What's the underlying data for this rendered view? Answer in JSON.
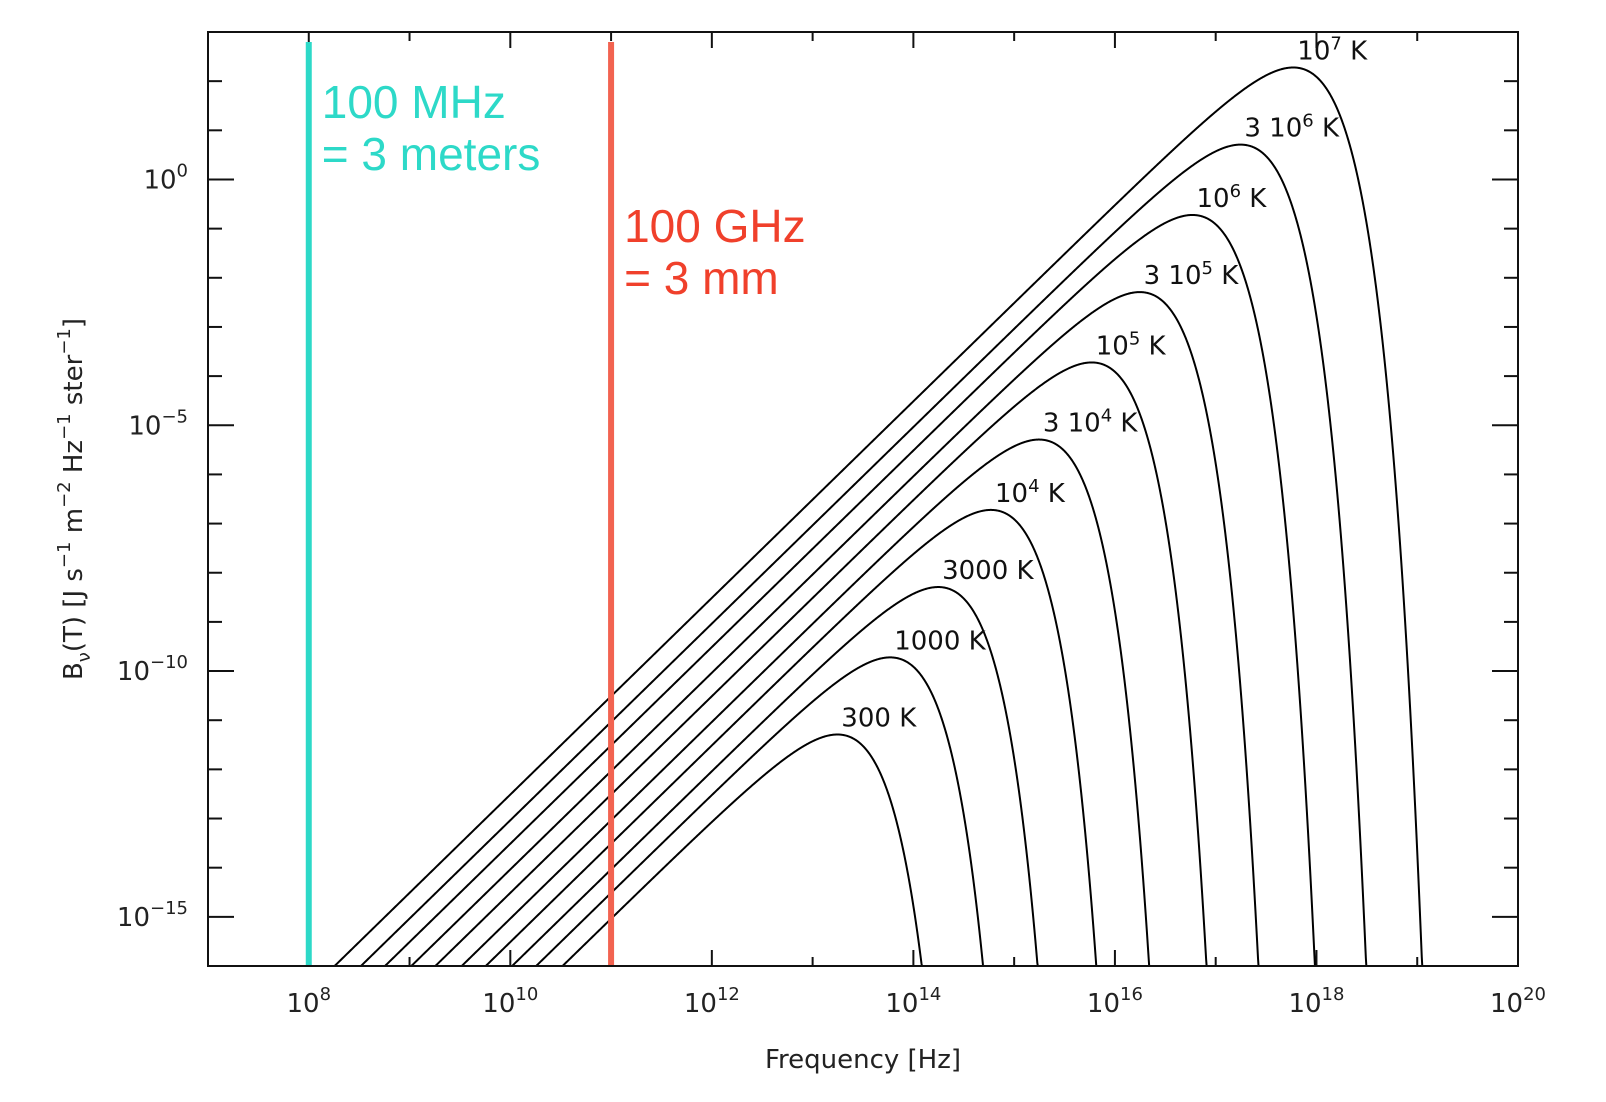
{
  "chart_data": {
    "type": "line",
    "x_scale": "log",
    "y_scale": "log",
    "xlim": [
      10000000,
      100000000000000000000
    ],
    "ylim": [
      1e-16,
      1000
    ],
    "xlabel": {
      "text": "Frequency [Hz]"
    },
    "ylabel": {
      "pre": "B",
      "sub": "ν",
      "mid": "(T)  [J s",
      "e1": "−1",
      "t2": " m",
      "e2": "−2",
      "t3": " Hz",
      "e3": "−1",
      "t4": " ster",
      "e4": "−1",
      "t5": "]"
    },
    "x_ticks": [
      {
        "value": 100000000,
        "base": "10",
        "exp": "8"
      },
      {
        "value": 10000000000,
        "base": "10",
        "exp": "10"
      },
      {
        "value": 1000000000000,
        "base": "10",
        "exp": "12"
      },
      {
        "value": 100000000000000,
        "base": "10",
        "exp": "14"
      },
      {
        "value": 10000000000000000,
        "base": "10",
        "exp": "16"
      },
      {
        "value": 1000000000000000000,
        "base": "10",
        "exp": "18"
      },
      {
        "value": 100000000000000000000,
        "base": "10",
        "exp": "20"
      }
    ],
    "y_ticks": [
      {
        "value": 1,
        "base": "10",
        "exp": "0"
      },
      {
        "value": 1e-05,
        "base": "10",
        "exp": "−5"
      },
      {
        "value": 1e-10,
        "base": "10",
        "exp": "−10"
      },
      {
        "value": 1e-15,
        "base": "10",
        "exp": "−15"
      }
    ],
    "series": [
      {
        "temperature_K": 300,
        "label": {
          "t1": "300  K"
        }
      },
      {
        "temperature_K": 1000,
        "label": {
          "t1": "1000  K"
        }
      },
      {
        "temperature_K": 3000,
        "label": {
          "t1": "3000  K"
        }
      },
      {
        "temperature_K": 10000,
        "label": {
          "t1": "10",
          "sup": "4",
          "t2": "  K"
        }
      },
      {
        "temperature_K": 30000,
        "label": {
          "t1": "3  10",
          "sup": "4",
          "t2": "  K"
        }
      },
      {
        "temperature_K": 100000,
        "label": {
          "t1": "10",
          "sup": "5",
          "t2": "  K"
        }
      },
      {
        "temperature_K": 300000,
        "label": {
          "t1": "3  10",
          "sup": "5",
          "t2": "  K"
        }
      },
      {
        "temperature_K": 1000000,
        "label": {
          "t1": "10",
          "sup": "6",
          "t2": "  K"
        }
      },
      {
        "temperature_K": 3000000,
        "label": {
          "t1": "3  10",
          "sup": "6",
          "t2": "  K"
        }
      },
      {
        "temperature_K": 10000000,
        "label": {
          "t1": "10",
          "sup": "7",
          "t2": "  K"
        }
      }
    ],
    "vertical_markers": [
      {
        "x": 100000000,
        "color": "#2dd9c8",
        "line1": "100 MHz",
        "line2": "= 3 meters"
      },
      {
        "x": 100000000000,
        "color": "#f0402b",
        "line_color": "#f26350",
        "line1": "100 GHz",
        "line2": "= 3 mm"
      }
    ]
  }
}
